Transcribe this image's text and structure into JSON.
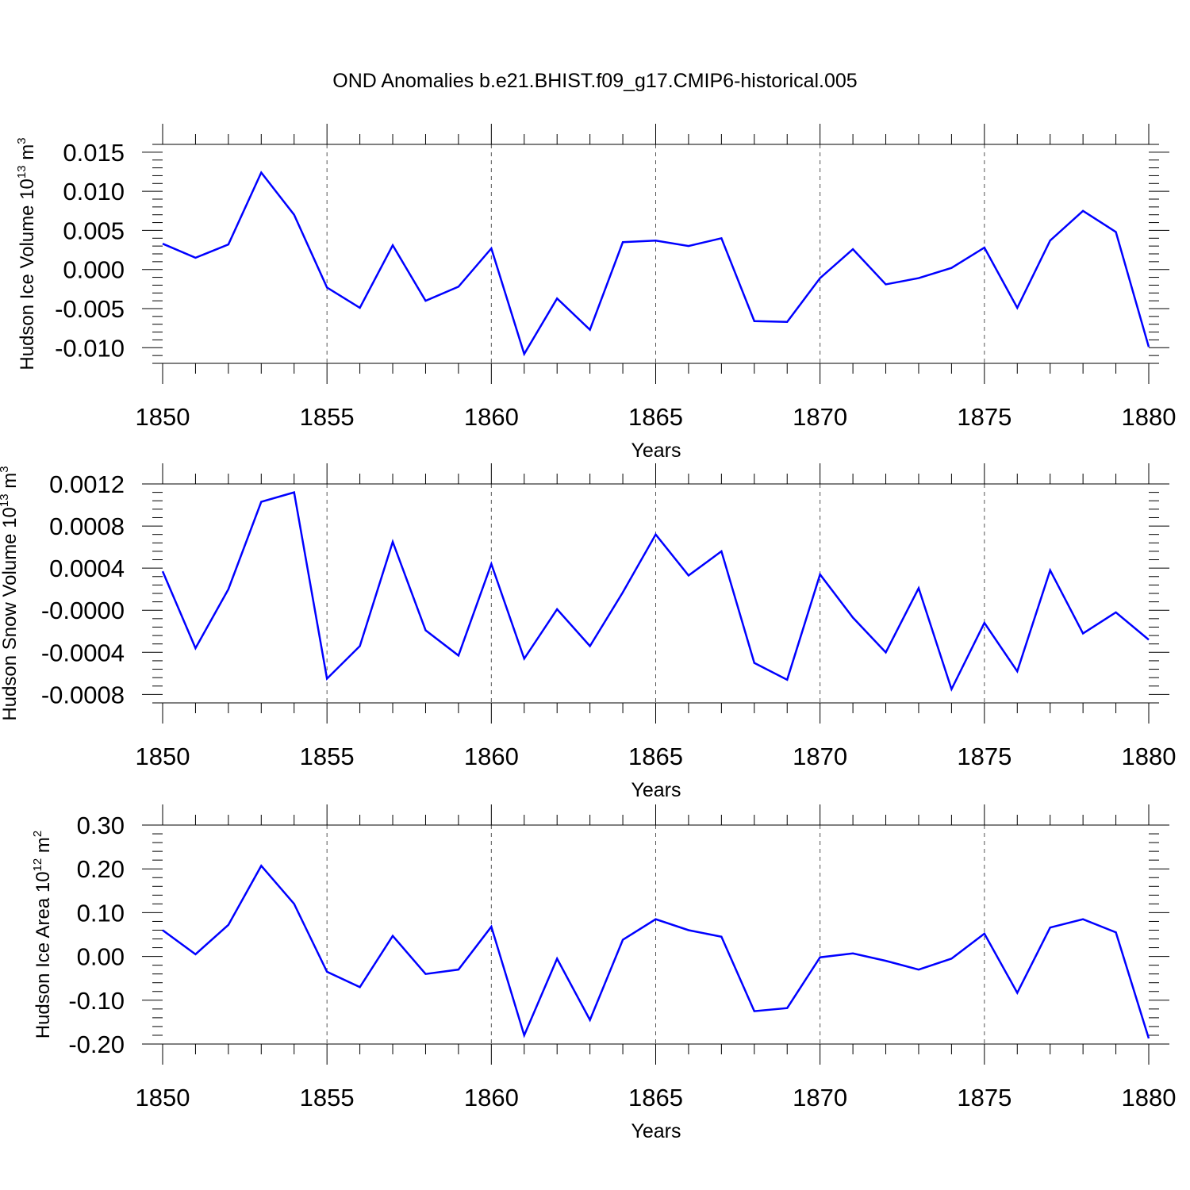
{
  "figure": {
    "title": "OND Anomalies b.e21.BHIST.f09_g17.CMIP6-historical.005"
  },
  "style": {
    "line_color": "#0000ff"
  },
  "chart_data": [
    {
      "type": "line",
      "ylabel": {
        "main": "Hudson Ice Volume 10",
        "sup": "13",
        "unit": " m",
        "unit_sup": "3"
      },
      "xlabel": "Years",
      "xlim": [
        1850,
        1880
      ],
      "ylim": [
        -0.012,
        0.016
      ],
      "xticks": [
        1850,
        1855,
        1860,
        1865,
        1870,
        1875,
        1880
      ],
      "xtick_labels": [
        "1850",
        "1855",
        "1860",
        "1865",
        "1870",
        "1875",
        "1880"
      ],
      "yticks": [
        -0.01,
        -0.005,
        0,
        0.005,
        0.01,
        0.015
      ],
      "ytick_labels": [
        "-0.010",
        "-0.005",
        "0.000",
        "0.005",
        "0.010",
        "0.015"
      ],
      "grid": "vertical dashed at labeled years",
      "x": [
        1850,
        1851,
        1852,
        1853,
        1854,
        1855,
        1856,
        1857,
        1858,
        1859,
        1860,
        1861,
        1862,
        1863,
        1864,
        1865,
        1866,
        1867,
        1868,
        1869,
        1870,
        1871,
        1872,
        1873,
        1874,
        1875,
        1876,
        1877,
        1878,
        1879,
        1880
      ],
      "values": [
        0.0033,
        0.0015,
        0.0032,
        0.0124,
        0.007,
        -0.0023,
        -0.0049,
        0.0031,
        -0.004,
        -0.0022,
        0.0027,
        -0.0108,
        -0.0037,
        -0.0077,
        0.0035,
        0.0037,
        0.003,
        0.004,
        -0.0066,
        -0.0067,
        -0.0011,
        0.0026,
        -0.0019,
        -0.0011,
        0.0002,
        0.0028,
        -0.0049,
        0.0037,
        0.0075,
        0.0048,
        -0.0099
      ]
    },
    {
      "type": "line",
      "ylabel": {
        "main": "Hudson Snow Volume 10",
        "sup": "13",
        "unit": " m",
        "unit_sup": "3"
      },
      "xlabel": "Years",
      "xlim": [
        1850,
        1880
      ],
      "ylim": [
        -0.00088,
        0.0012
      ],
      "xticks": [
        1850,
        1855,
        1860,
        1865,
        1870,
        1875,
        1880
      ],
      "xtick_labels": [
        "1850",
        "1855",
        "1860",
        "1865",
        "1870",
        "1875",
        "1880"
      ],
      "yticks": [
        -0.0008,
        -0.0004,
        0,
        0.0004,
        0.0008,
        0.0012
      ],
      "ytick_labels": [
        "-0.0008",
        "-0.0004",
        "-0.0000",
        "0.0004",
        "0.0008",
        "0.0012"
      ],
      "grid": "vertical dashed at labeled years",
      "x": [
        1850,
        1851,
        1852,
        1853,
        1854,
        1855,
        1856,
        1857,
        1858,
        1859,
        1860,
        1861,
        1862,
        1863,
        1864,
        1865,
        1866,
        1867,
        1868,
        1869,
        1870,
        1871,
        1872,
        1873,
        1874,
        1875,
        1876,
        1877,
        1878,
        1879,
        1880
      ],
      "values": [
        0.00037,
        -0.00036,
        0.0002,
        0.00103,
        0.00112,
        -0.00065,
        -0.00034,
        0.00065,
        -0.00019,
        -0.00043,
        0.00044,
        -0.00046,
        1e-05,
        -0.00034,
        0.00017,
        0.00072,
        0.00033,
        0.00056,
        -0.0005,
        -0.00066,
        0.00034,
        -7e-05,
        -0.0004,
        0.00021,
        -0.00075,
        -0.00012,
        -0.00058,
        0.00038,
        -0.00022,
        -2e-05,
        -0.00028
      ]
    },
    {
      "type": "line",
      "ylabel": {
        "main": "Hudson Ice Area 10",
        "sup": "12",
        "unit": " m",
        "unit_sup": "2"
      },
      "xlabel": "Years",
      "xlim": [
        1850,
        1880
      ],
      "ylim": [
        -0.2,
        0.3
      ],
      "xticks": [
        1850,
        1855,
        1860,
        1865,
        1870,
        1875,
        1880
      ],
      "xtick_labels": [
        "1850",
        "1855",
        "1860",
        "1865",
        "1870",
        "1875",
        "1880"
      ],
      "yticks": [
        -0.2,
        -0.1,
        0,
        0.1,
        0.2,
        0.3
      ],
      "ytick_labels": [
        "-0.20",
        "-0.10",
        "0.00",
        "0.10",
        "0.20",
        "0.30"
      ],
      "grid": "vertical dashed at labeled years",
      "x": [
        1850,
        1851,
        1852,
        1853,
        1854,
        1855,
        1856,
        1857,
        1858,
        1859,
        1860,
        1861,
        1862,
        1863,
        1864,
        1865,
        1866,
        1867,
        1868,
        1869,
        1870,
        1871,
        1872,
        1873,
        1874,
        1875,
        1876,
        1877,
        1878,
        1879,
        1880
      ],
      "values": [
        0.06,
        0.005,
        0.072,
        0.207,
        0.12,
        -0.035,
        -0.07,
        0.047,
        -0.04,
        -0.03,
        0.068,
        -0.18,
        -0.005,
        -0.145,
        0.038,
        0.085,
        0.06,
        0.045,
        -0.125,
        -0.118,
        -0.002,
        0.007,
        -0.01,
        -0.03,
        -0.005,
        0.052,
        -0.083,
        0.066,
        0.085,
        0.055,
        -0.187
      ]
    }
  ]
}
